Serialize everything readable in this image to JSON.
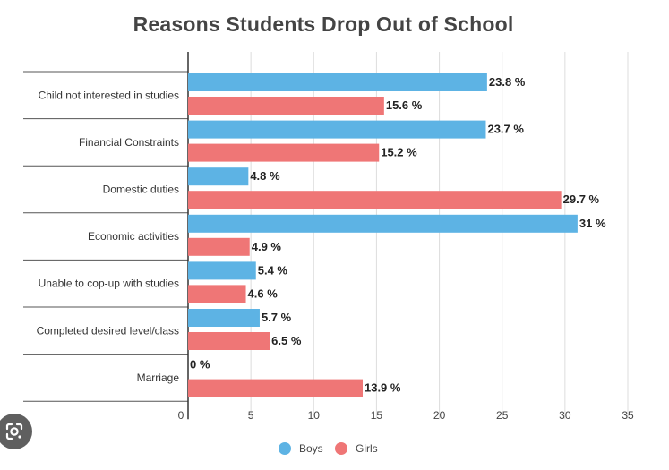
{
  "chart_data": {
    "type": "bar",
    "orientation": "horizontal",
    "title": "Reasons Students Drop Out of School",
    "categories": [
      "Child not interested in studies",
      "Financial Constraints",
      "Domestic duties",
      "Economic activities",
      "Unable to cop-up with studies",
      "Completed desired level/class",
      "Marriage"
    ],
    "series": [
      {
        "name": "Boys",
        "color": "#5DB3E4",
        "values": [
          23.8,
          23.7,
          4.8,
          31,
          5.4,
          5.7,
          0
        ],
        "labels": [
          "23.8 %",
          "23.7 %",
          "4.8 %",
          "31 %",
          "5.4 %",
          "5.7 %",
          "0 %"
        ]
      },
      {
        "name": "Girls",
        "color": "#EF7676",
        "values": [
          15.6,
          15.2,
          29.7,
          4.9,
          4.6,
          6.5,
          13.9
        ],
        "labels": [
          "15.6 %",
          "15.2 %",
          "29.7 %",
          "4.9 %",
          "4.6 %",
          "6.5 %",
          "13.9 %"
        ]
      }
    ],
    "xlim": [
      0,
      35
    ],
    "xticks": [
      "0",
      "5",
      "10",
      "15",
      "20",
      "25",
      "30",
      "35"
    ],
    "grid": true,
    "legend_position": "bottom"
  },
  "overlay": {
    "icon": "google-lens-icon"
  }
}
